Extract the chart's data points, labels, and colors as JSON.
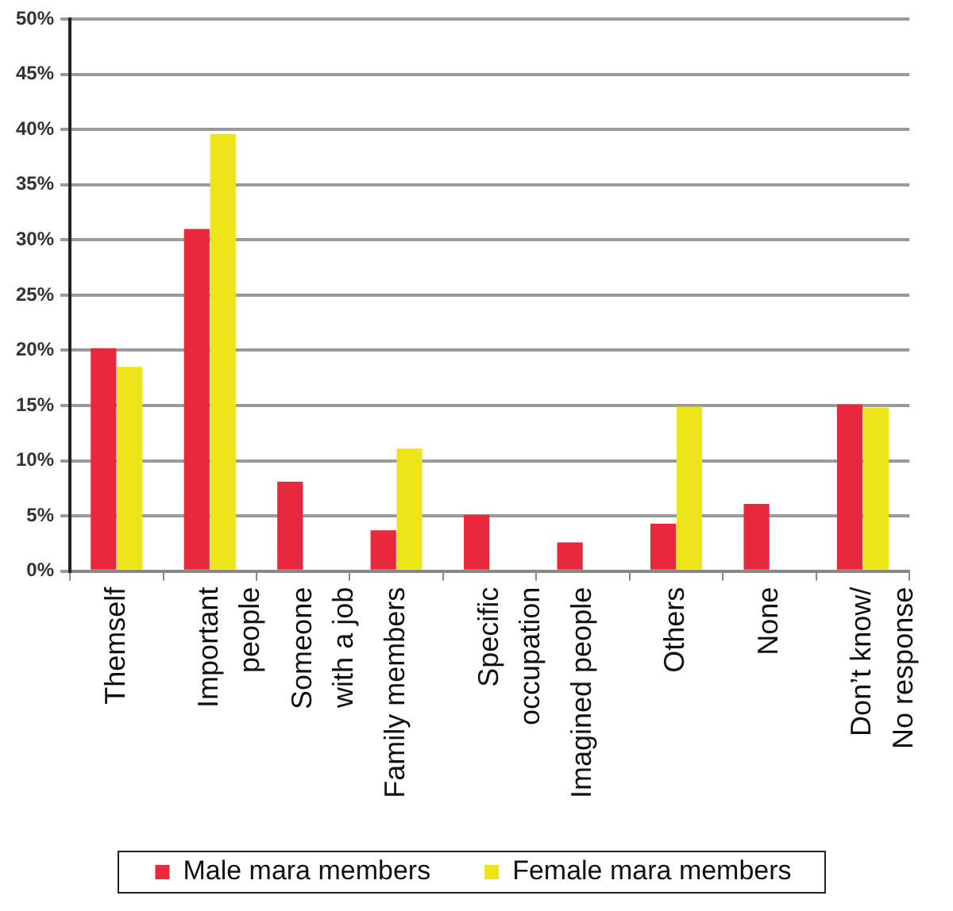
{
  "chart_data": {
    "type": "bar",
    "categories": [
      "Themself",
      "Important\npeople",
      "Someone\nwith a job",
      "Family members",
      "Specific\noccupation",
      "Imagined people",
      "Others",
      "None",
      "Don’t know/\nNo response"
    ],
    "series": [
      {
        "name": "Male mara members",
        "color": "#e8283c",
        "values": [
          20.2,
          31,
          8.1,
          3.7,
          5.1,
          2.6,
          4.3,
          6.1,
          15.1
        ]
      },
      {
        "name": "Female mara members",
        "color": "#eee41c",
        "values": [
          18.5,
          39.6,
          0,
          11.1,
          0,
          0,
          14.9,
          0,
          14.8
        ]
      }
    ],
    "ylim": [
      0,
      50
    ],
    "yticks": [
      {
        "value": 0,
        "label": "0%"
      },
      {
        "value": 5,
        "label": "5%"
      },
      {
        "value": 10,
        "label": "10%"
      },
      {
        "value": 15,
        "label": "15%"
      },
      {
        "value": 20,
        "label": "20%"
      },
      {
        "value": 25,
        "label": "25%"
      },
      {
        "value": 30,
        "label": "30%"
      },
      {
        "value": 35,
        "label": "35%"
      },
      {
        "value": 40,
        "label": "40%"
      },
      {
        "value": 45,
        "label": "45%"
      },
      {
        "value": 50,
        "label": "50%"
      }
    ],
    "grid": "y",
    "legend": "bottom"
  }
}
